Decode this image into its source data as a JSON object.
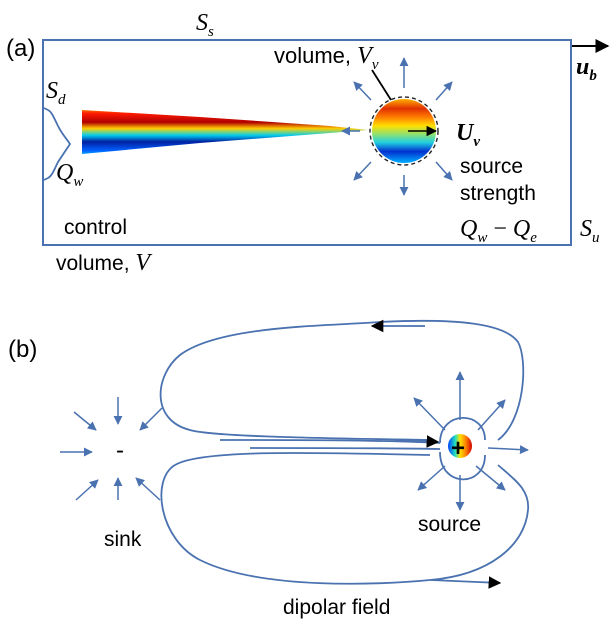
{
  "panel_a": {
    "label": "(a)",
    "S_s": {
      "main": "S",
      "sub": "s"
    },
    "S_d": {
      "main": "S",
      "sub": "d"
    },
    "S_u": {
      "main": "S",
      "sub": "u"
    },
    "Q_w": {
      "main": "Q",
      "sub": "w"
    },
    "u_b": {
      "main": "u",
      "sub": "b"
    },
    "U_v": {
      "main": "U",
      "sub": "v"
    },
    "volume_label": {
      "text": "volume, ",
      "main": "V",
      "sub": "v"
    },
    "source_strength": {
      "line1": "source",
      "line2": "strength",
      "q1": "Q",
      "q1sub": "w",
      "minus": " − ",
      "q2": "Q",
      "q2sub": "e"
    },
    "control_volume": {
      "line1": "control",
      "line2": "volume, ",
      "var": "V"
    }
  },
  "panel_b": {
    "label": "(b)",
    "sink_sign": "-",
    "source_sign": "+",
    "sink_label": "sink",
    "source_label": "source",
    "caption": "dipolar field"
  },
  "colors": {
    "line_blue": "#4a72b0",
    "wake_red": "#b00000",
    "wake_blue": "#0020a0"
  }
}
